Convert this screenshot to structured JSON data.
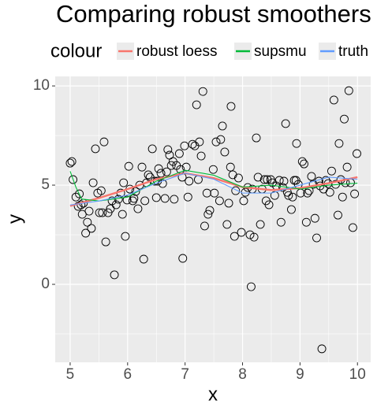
{
  "chart_data": {
    "type": "line",
    "title": "Comparing robust smoothers",
    "xlabel": "x",
    "ylabel": "y",
    "legend_title": "colour",
    "xlim": [
      4.74,
      10.23
    ],
    "ylim": [
      -3.93,
      10.48
    ],
    "xticks": [
      5,
      6,
      7,
      8,
      9,
      10
    ],
    "yticks": [
      0,
      5,
      10
    ],
    "x_minor_ticks": [
      5.5,
      6.5,
      7.5,
      8.5,
      9.5
    ],
    "y_minor_ticks": [
      -2.5,
      2.5,
      7.5
    ],
    "grid": true,
    "points": {
      "x": [
        5.0,
        5.03,
        5.05,
        5.1,
        5.14,
        5.16,
        5.19,
        5.21,
        5.23,
        5.27,
        5.3,
        5.33,
        5.37,
        5.4,
        5.44,
        5.48,
        5.51,
        5.54,
        5.56,
        5.59,
        5.62,
        5.66,
        5.7,
        5.73,
        5.77,
        5.8,
        5.84,
        5.88,
        5.91,
        5.93,
        5.96,
        5.99,
        6.02,
        6.04,
        6.09,
        6.11,
        6.14,
        6.18,
        6.21,
        6.25,
        6.28,
        6.3,
        6.33,
        6.36,
        6.39,
        6.43,
        6.47,
        6.5,
        6.52,
        6.54,
        6.58,
        6.61,
        6.65,
        6.68,
        6.7,
        6.73,
        6.76,
        6.79,
        6.81,
        6.85,
        6.9,
        6.92,
        6.95,
        6.96,
        6.99,
        7.02,
        7.05,
        7.07,
        7.13,
        7.17,
        7.2,
        7.23,
        7.25,
        7.28,
        7.31,
        7.34,
        7.38,
        7.4,
        7.43,
        7.49,
        7.51,
        7.54,
        7.6,
        7.62,
        7.65,
        7.69,
        7.73,
        7.76,
        7.79,
        7.8,
        7.83,
        7.86,
        7.88,
        7.93,
        7.98,
        8.02,
        8.05,
        8.09,
        8.13,
        8.15,
        8.17,
        8.2,
        8.24,
        8.27,
        8.31,
        8.34,
        8.38,
        8.41,
        8.43,
        8.46,
        8.49,
        8.52,
        8.56,
        8.59,
        8.64,
        8.67,
        8.7,
        8.72,
        8.75,
        8.78,
        8.8,
        8.85,
        8.87,
        8.9,
        8.93,
        8.94,
        8.97,
        9.01,
        9.04,
        9.07,
        9.11,
        9.13,
        9.16,
        9.2,
        9.23,
        9.26,
        9.29,
        9.33,
        9.35,
        9.38,
        9.41,
        9.45,
        9.49,
        9.52,
        9.55,
        9.59,
        9.62,
        9.66,
        9.68,
        9.71,
        9.74,
        9.77,
        9.79,
        9.82,
        9.85,
        9.88,
        9.92,
        9.95,
        9.99
      ],
      "y": [
        6.11,
        6.19,
        5.28,
        4.4,
        3.93,
        4.56,
        4.01,
        3.53,
        4.09,
        2.58,
        3.13,
        3.69,
        2.82,
        5.12,
        6.83,
        4.6,
        3.61,
        4.72,
        3.61,
        7.18,
        2.14,
        3.61,
        3.81,
        4.21,
        0.48,
        4.01,
        4.29,
        4.6,
        3.53,
        5.12,
        2.42,
        4.25,
        5.95,
        4.8,
        4.21,
        4.33,
        4.68,
        3.81,
        5.0,
        5.91,
        1.27,
        4.21,
        5.12,
        5.52,
        5.4,
        6.83,
        5.2,
        4.37,
        5.2,
        5.83,
        5.6,
        5.08,
        4.33,
        5.67,
        6.79,
        6.51,
        5.99,
        6.19,
        4.29,
        5.99,
        6.59,
        5.79,
        5.4,
        1.31,
        6.98,
        5.91,
        4.4,
        5.2,
        7.06,
        6.98,
        9.05,
        5.28,
        7.18,
        6.47,
        9.72,
        2.94,
        4.6,
        3.53,
        3.73,
        5.79,
        4.6,
        7.18,
        4.21,
        7.3,
        7.98,
        6.67,
        3.02,
        4.09,
        5.91,
        8.97,
        5.52,
        2.42,
        4.72,
        5.36,
        2.62,
        4.21,
        4.64,
        4.88,
        2.5,
        -0.12,
        4.8,
        2.38,
        7.38,
        5.4,
        3.02,
        4.8,
        5.28,
        4.21,
        5.28,
        4.01,
        5.28,
        5.12,
        4.48,
        4.96,
        5.24,
        3.13,
        4.88,
        5.2,
        8.1,
        4.64,
        4.48,
        3.77,
        4.4,
        5.24,
        5.24,
        7.1,
        5.04,
        4.6,
        6.19,
        6.07,
        3.13,
        4.6,
        4.72,
        5.44,
        5.04,
        3.33,
        2.34,
        5.2,
        4.96,
        -3.25,
        4.8,
        5.24,
        5.08,
        4.64,
        5.71,
        9.29,
        5.04,
        3.49,
        7.1,
        5.28,
        4.4,
        8.33,
        5.12,
        5.91,
        9.76,
        5.12,
        2.86,
        4.56,
        6.59
      ]
    },
    "series": [
      {
        "name": "robust loess",
        "color": "#F8766D",
        "x": [
          5,
          5.5,
          6,
          6.5,
          7,
          7.5,
          8,
          8.5,
          9,
          9.5,
          10
        ],
        "values": [
          3.95,
          4.35,
          4.8,
          5.3,
          5.6,
          5.35,
          4.9,
          4.75,
          4.85,
          5.1,
          5.4
        ]
      },
      {
        "name": "supsmu",
        "color": "#00BA38",
        "x": [
          5,
          5.1,
          5.2,
          5.5,
          6,
          6.5,
          7,
          7.5,
          8,
          8.5,
          9,
          9.5,
          10
        ],
        "values": [
          5.7,
          4.9,
          4.3,
          4.2,
          4.4,
          5.2,
          5.75,
          5.5,
          4.9,
          5.0,
          4.8,
          5.0,
          5.1
        ]
      },
      {
        "name": "truth",
        "color": "#619CFF",
        "x": [
          5,
          5.5,
          6,
          6.5,
          7,
          7.5,
          8,
          8.5,
          9,
          9.5,
          10
        ],
        "values": [
          4.0,
          4.2,
          4.5,
          5.1,
          5.6,
          5.3,
          4.6,
          4.6,
          5.0,
          5.4,
          5.3
        ]
      }
    ]
  }
}
